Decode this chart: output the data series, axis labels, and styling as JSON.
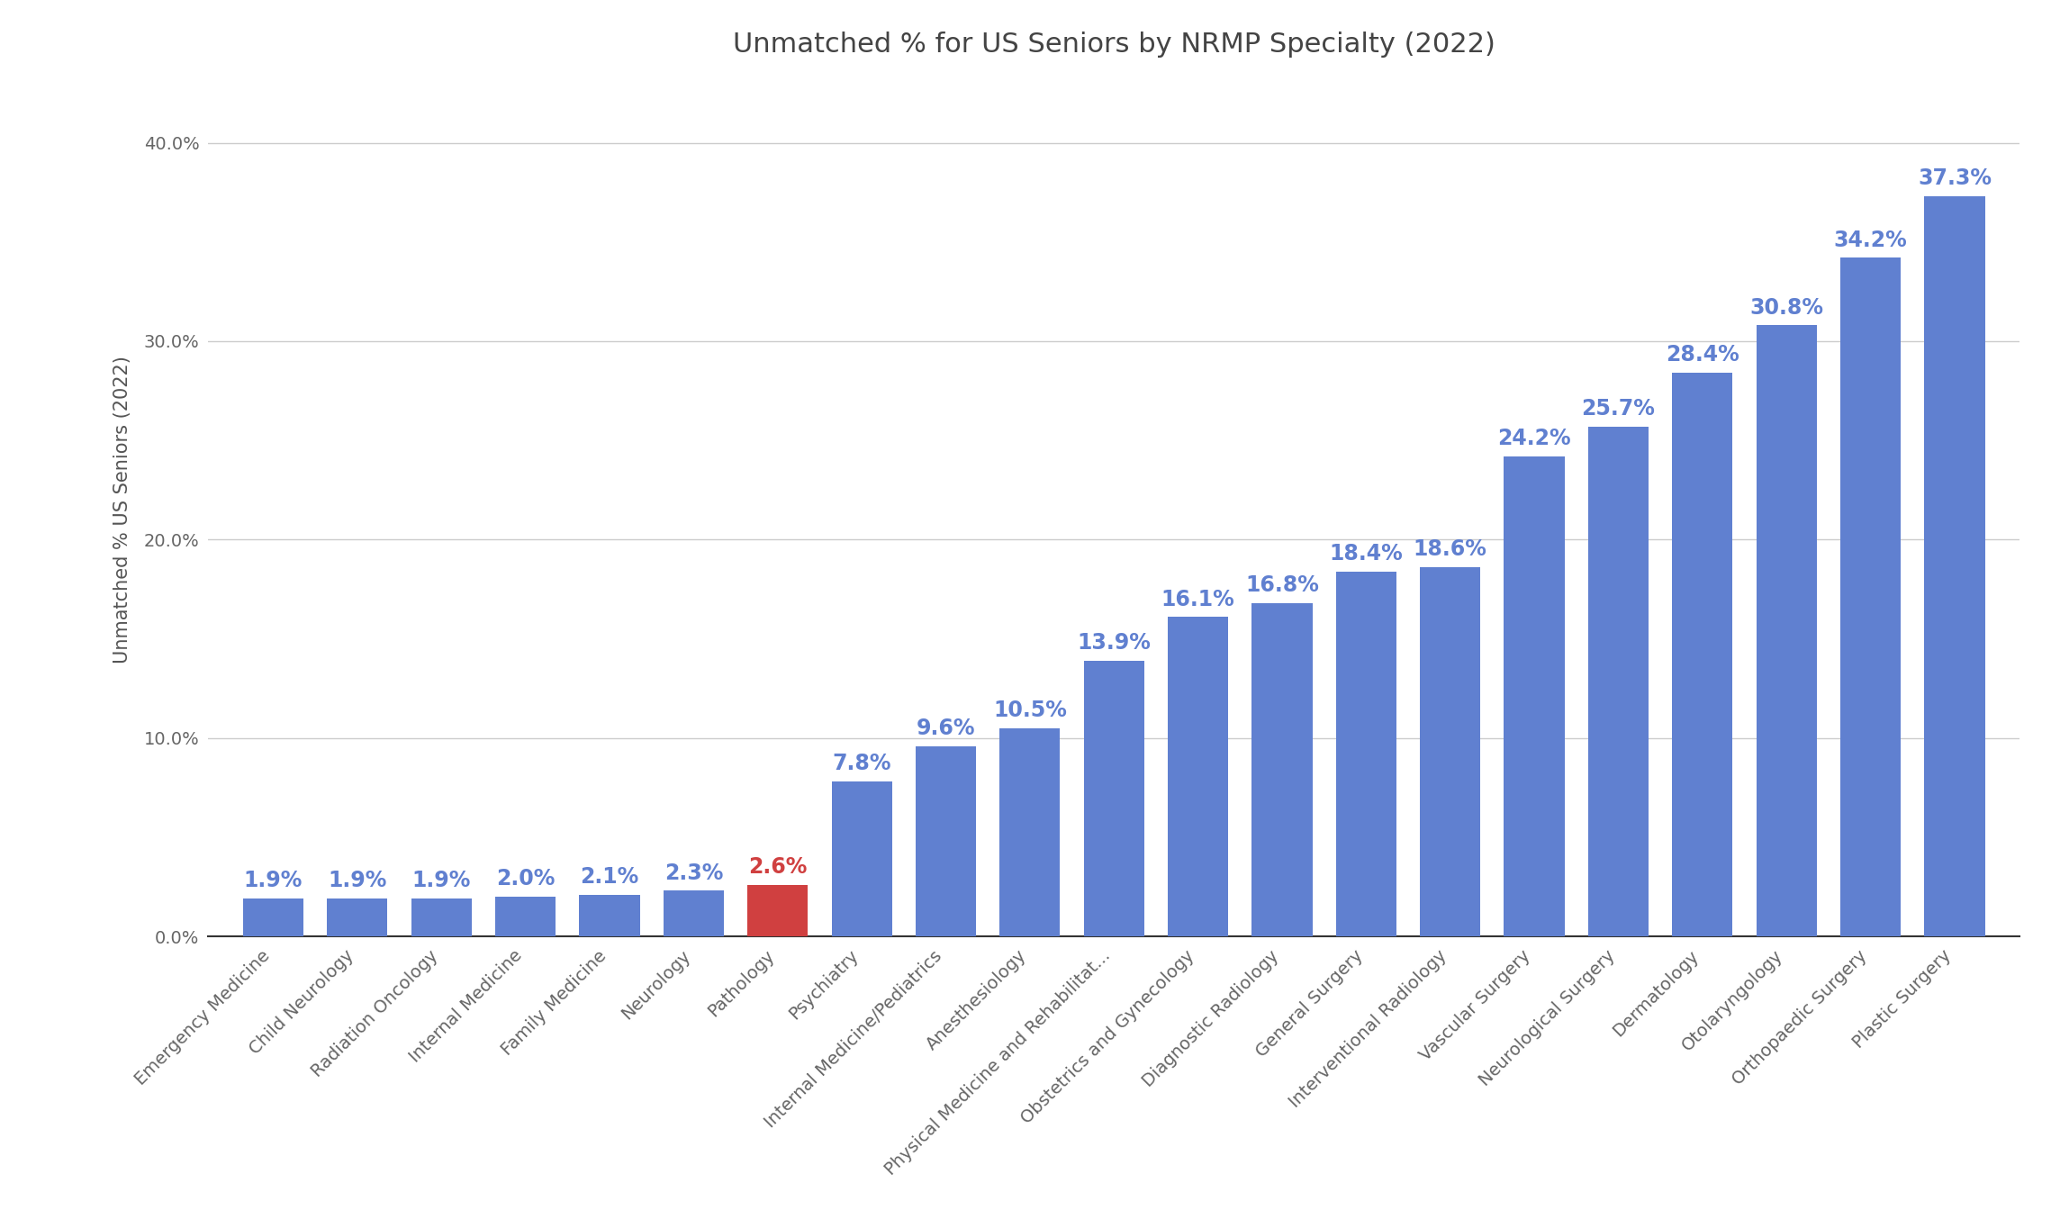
{
  "title": "Unmatched % for US Seniors by NRMP Specialty (2022)",
  "ylabel": "Unmatched % US Seniors (2022)",
  "categories": [
    "Emergency Medicine",
    "Child Neurology",
    "Radiation Oncology",
    "Internal Medicine",
    "Family Medicine",
    "Neurology",
    "Pathology",
    "Psychiatry",
    "Internal Medicine/Pediatrics",
    "Anesthesiology",
    "Physical Medicine and Rehabilitat...",
    "Obstetrics and Gynecology",
    "Diagnostic Radiology",
    "General Surgery",
    "Interventional Radiology",
    "Vascular Surgery",
    "Neurological Surgery",
    "Dermatology",
    "Otolaryngology",
    "Orthopaedic Surgery",
    "Plastic Surgery"
  ],
  "values": [
    1.9,
    1.9,
    1.9,
    2.0,
    2.1,
    2.3,
    2.6,
    7.8,
    9.6,
    10.5,
    13.9,
    16.1,
    16.8,
    18.4,
    18.6,
    24.2,
    25.7,
    28.4,
    30.8,
    34.2,
    37.3
  ],
  "highlight_index": 6,
  "bar_color": "#6080D0",
  "highlight_color": "#D04040",
  "label_color_normal": "#6080D0",
  "label_color_highlight": "#D04040",
  "background_color": "#ffffff",
  "ylim": [
    0,
    43
  ],
  "yticks": [
    0.0,
    10.0,
    20.0,
    30.0,
    40.0
  ],
  "ytick_labels": [
    "0.0%",
    "10.0%",
    "20.0%",
    "30.0%",
    "40.0%"
  ],
  "title_fontsize": 22,
  "ylabel_fontsize": 15,
  "value_label_fontsize": 17,
  "tick_label_fontsize": 14,
  "xtick_label_fontsize": 14,
  "bar_width": 0.72,
  "grid_color": "#cccccc",
  "spine_color": "#333333",
  "tick_color": "#666666",
  "title_color": "#444444",
  "axis_label_color": "#555555"
}
